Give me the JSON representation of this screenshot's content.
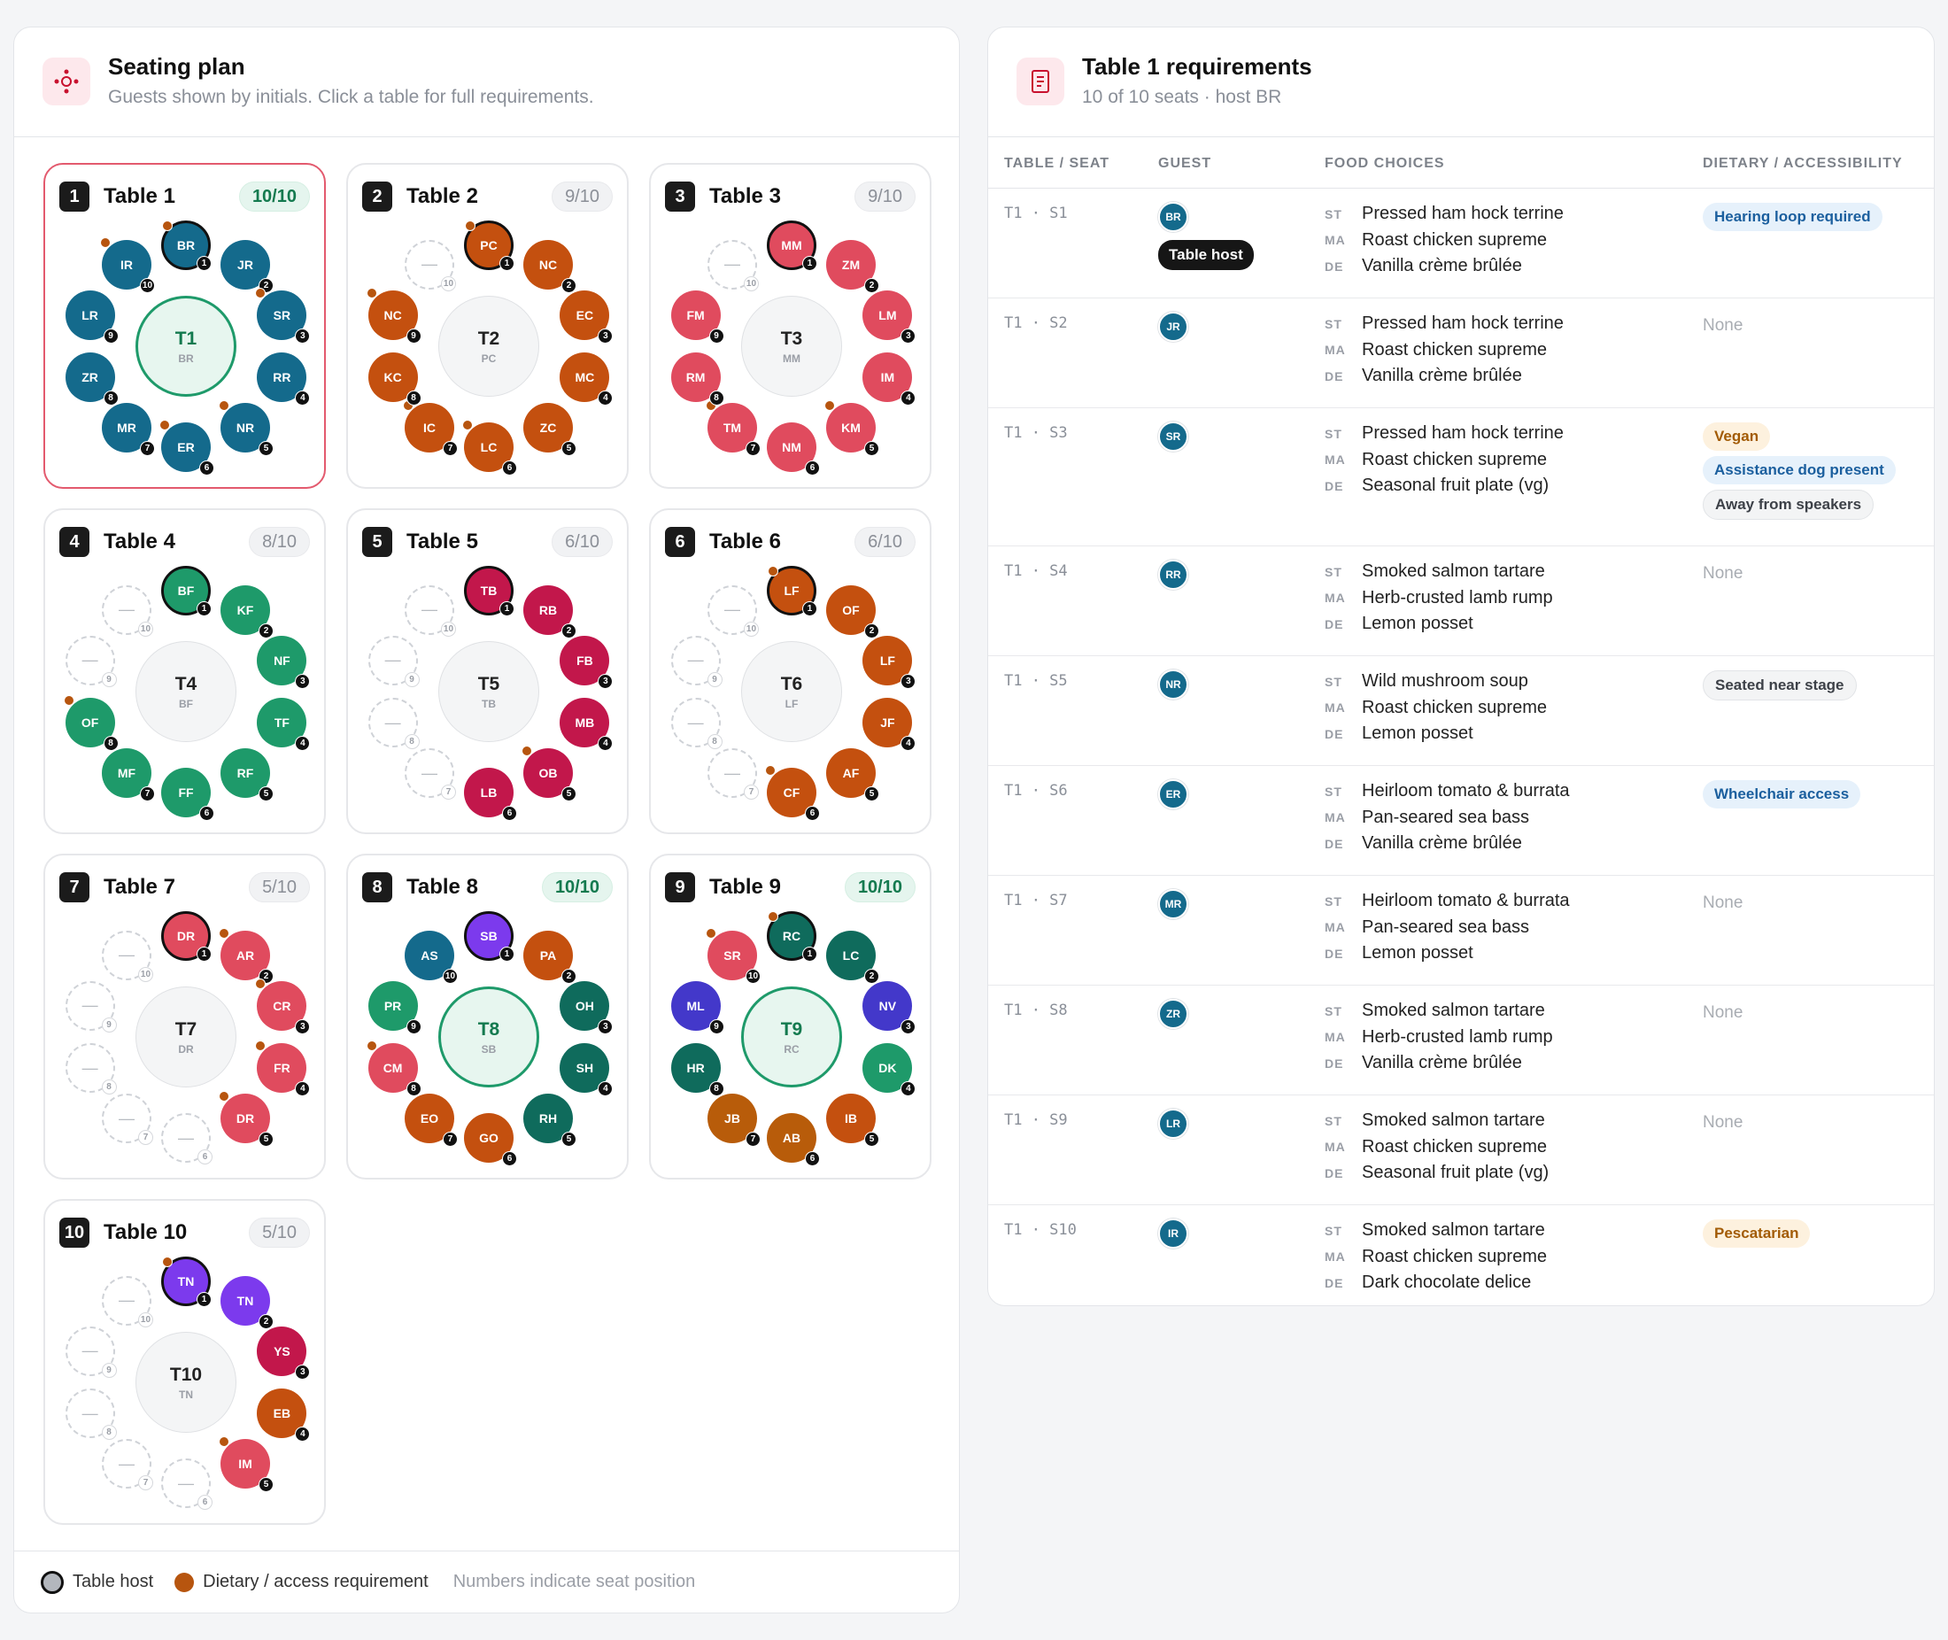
{
  "seating": {
    "title": "Seating plan",
    "subtitle": "Guests shown by initials. Click a table for full requirements.",
    "tables": [
      {
        "num": "1",
        "name": "Table 1",
        "count": "10/10",
        "full": true,
        "selected": true,
        "code": "T1",
        "host": "BR",
        "seats": [
          {
            "n": "1",
            "ini": "BR",
            "color": "#146a8c",
            "host": true,
            "req": true
          },
          {
            "n": "2",
            "ini": "JR",
            "color": "#146a8c",
            "req": false
          },
          {
            "n": "3",
            "ini": "SR",
            "color": "#146a8c",
            "req": true
          },
          {
            "n": "4",
            "ini": "RR",
            "color": "#146a8c",
            "req": false
          },
          {
            "n": "5",
            "ini": "NR",
            "color": "#146a8c",
            "req": true
          },
          {
            "n": "6",
            "ini": "ER",
            "color": "#146a8c",
            "req": true
          },
          {
            "n": "7",
            "ini": "MR",
            "color": "#146a8c",
            "req": false
          },
          {
            "n": "8",
            "ini": "ZR",
            "color": "#146a8c",
            "req": false
          },
          {
            "n": "9",
            "ini": "LR",
            "color": "#146a8c",
            "req": false
          },
          {
            "n": "10",
            "ini": "IR",
            "color": "#146a8c",
            "req": true
          }
        ]
      },
      {
        "num": "2",
        "name": "Table 2",
        "count": "9/10",
        "full": false,
        "code": "T2",
        "host": "PC",
        "seats": [
          {
            "n": "1",
            "ini": "PC",
            "color": "#c4500f",
            "host": true,
            "req": true
          },
          {
            "n": "2",
            "ini": "NC",
            "color": "#c4500f",
            "req": false
          },
          {
            "n": "3",
            "ini": "EC",
            "color": "#c4500f",
            "req": false
          },
          {
            "n": "4",
            "ini": "MC",
            "color": "#c4500f",
            "req": false
          },
          {
            "n": "5",
            "ini": "ZC",
            "color": "#c4500f",
            "req": false
          },
          {
            "n": "6",
            "ini": "LC",
            "color": "#c4500f",
            "req": true
          },
          {
            "n": "7",
            "ini": "IC",
            "color": "#c4500f",
            "req": true
          },
          {
            "n": "8",
            "ini": "KC",
            "color": "#c4500f",
            "req": false
          },
          {
            "n": "9",
            "ini": "NC",
            "color": "#c4500f",
            "req": true
          },
          {
            "n": "10",
            "ini": "",
            "empty": true
          }
        ]
      },
      {
        "num": "3",
        "name": "Table 3",
        "count": "9/10",
        "full": false,
        "code": "T3",
        "host": "MM",
        "seats": [
          {
            "n": "1",
            "ini": "MM",
            "color": "#e04b5e",
            "host": true,
            "req": false
          },
          {
            "n": "2",
            "ini": "ZM",
            "color": "#e04b5e",
            "req": false
          },
          {
            "n": "3",
            "ini": "LM",
            "color": "#e04b5e",
            "req": false
          },
          {
            "n": "4",
            "ini": "IM",
            "color": "#e04b5e",
            "req": false
          },
          {
            "n": "5",
            "ini": "KM",
            "color": "#e04b5e",
            "req": true
          },
          {
            "n": "6",
            "ini": "NM",
            "color": "#e04b5e",
            "req": false
          },
          {
            "n": "7",
            "ini": "TM",
            "color": "#e04b5e",
            "req": true
          },
          {
            "n": "8",
            "ini": "RM",
            "color": "#e04b5e",
            "req": false
          },
          {
            "n": "9",
            "ini": "FM",
            "color": "#e04b5e",
            "req": false
          },
          {
            "n": "10",
            "ini": "",
            "empty": true
          }
        ]
      },
      {
        "num": "4",
        "name": "Table 4",
        "count": "8/10",
        "full": false,
        "code": "T4",
        "host": "BF",
        "seats": [
          {
            "n": "1",
            "ini": "BF",
            "color": "#1e9a6a",
            "host": true,
            "req": false
          },
          {
            "n": "2",
            "ini": "KF",
            "color": "#1e9a6a",
            "req": false
          },
          {
            "n": "3",
            "ini": "NF",
            "color": "#1e9a6a",
            "req": false
          },
          {
            "n": "4",
            "ini": "TF",
            "color": "#1e9a6a",
            "req": false
          },
          {
            "n": "5",
            "ini": "RF",
            "color": "#1e9a6a",
            "req": false
          },
          {
            "n": "6",
            "ini": "FF",
            "color": "#1e9a6a",
            "req": false
          },
          {
            "n": "7",
            "ini": "MF",
            "color": "#1e9a6a",
            "req": false
          },
          {
            "n": "8",
            "ini": "OF",
            "color": "#1e9a6a",
            "req": true
          },
          {
            "n": "9",
            "ini": "",
            "empty": true
          },
          {
            "n": "10",
            "ini": "",
            "empty": true
          }
        ]
      },
      {
        "num": "5",
        "name": "Table 5",
        "count": "6/10",
        "full": false,
        "code": "T5",
        "host": "TB",
        "seats": [
          {
            "n": "1",
            "ini": "TB",
            "color": "#c2174b",
            "host": true,
            "req": false
          },
          {
            "n": "2",
            "ini": "RB",
            "color": "#c2174b",
            "req": false
          },
          {
            "n": "3",
            "ini": "FB",
            "color": "#c2174b",
            "req": false
          },
          {
            "n": "4",
            "ini": "MB",
            "color": "#c2174b",
            "req": false
          },
          {
            "n": "5",
            "ini": "OB",
            "color": "#c2174b",
            "req": true
          },
          {
            "n": "6",
            "ini": "LB",
            "color": "#c2174b",
            "req": false
          },
          {
            "n": "7",
            "ini": "",
            "empty": true
          },
          {
            "n": "8",
            "ini": "",
            "empty": true
          },
          {
            "n": "9",
            "ini": "",
            "empty": true
          },
          {
            "n": "10",
            "ini": "",
            "empty": true
          }
        ]
      },
      {
        "num": "6",
        "name": "Table 6",
        "count": "6/10",
        "full": false,
        "code": "T6",
        "host": "LF",
        "seats": [
          {
            "n": "1",
            "ini": "LF",
            "color": "#c4500f",
            "host": true,
            "req": true
          },
          {
            "n": "2",
            "ini": "OF",
            "color": "#c4500f",
            "req": false
          },
          {
            "n": "3",
            "ini": "LF",
            "color": "#c4500f",
            "req": false
          },
          {
            "n": "4",
            "ini": "JF",
            "color": "#c4500f",
            "req": false
          },
          {
            "n": "5",
            "ini": "AF",
            "color": "#c4500f",
            "req": false
          },
          {
            "n": "6",
            "ini": "CF",
            "color": "#c4500f",
            "req": true
          },
          {
            "n": "7",
            "ini": "",
            "empty": true
          },
          {
            "n": "8",
            "ini": "",
            "empty": true
          },
          {
            "n": "9",
            "ini": "",
            "empty": true
          },
          {
            "n": "10",
            "ini": "",
            "empty": true
          }
        ]
      },
      {
        "num": "7",
        "name": "Table 7",
        "count": "5/10",
        "full": false,
        "code": "T7",
        "host": "DR",
        "seats": [
          {
            "n": "1",
            "ini": "DR",
            "color": "#e04b5e",
            "host": true,
            "req": false
          },
          {
            "n": "2",
            "ini": "AR",
            "color": "#e04b5e",
            "req": true
          },
          {
            "n": "3",
            "ini": "CR",
            "color": "#e04b5e",
            "req": true
          },
          {
            "n": "4",
            "ini": "FR",
            "color": "#e04b5e",
            "req": true
          },
          {
            "n": "5",
            "ini": "DR",
            "color": "#e04b5e",
            "req": true
          },
          {
            "n": "6",
            "ini": "",
            "empty": true
          },
          {
            "n": "7",
            "ini": "",
            "empty": true
          },
          {
            "n": "8",
            "ini": "",
            "empty": true
          },
          {
            "n": "9",
            "ini": "",
            "empty": true
          },
          {
            "n": "10",
            "ini": "",
            "empty": true
          }
        ]
      },
      {
        "num": "8",
        "name": "Table 8",
        "count": "10/10",
        "full": true,
        "code": "T8",
        "host": "SB",
        "seats": [
          {
            "n": "1",
            "ini": "SB",
            "color": "#7c3aed",
            "host": true,
            "req": false
          },
          {
            "n": "2",
            "ini": "PA",
            "color": "#c4500f",
            "req": false
          },
          {
            "n": "3",
            "ini": "OH",
            "color": "#0f6b5c",
            "req": false
          },
          {
            "n": "4",
            "ini": "SH",
            "color": "#0f6b5c",
            "req": false
          },
          {
            "n": "5",
            "ini": "RH",
            "color": "#0f6b5c",
            "req": false
          },
          {
            "n": "6",
            "ini": "GO",
            "color": "#c4500f",
            "req": false
          },
          {
            "n": "7",
            "ini": "EO",
            "color": "#c4500f",
            "req": false
          },
          {
            "n": "8",
            "ini": "CM",
            "color": "#e04b5e",
            "req": true
          },
          {
            "n": "9",
            "ini": "PR",
            "color": "#1e9a6a",
            "req": false
          },
          {
            "n": "10",
            "ini": "AS",
            "color": "#146a8c",
            "req": false
          }
        ]
      },
      {
        "num": "9",
        "name": "Table 9",
        "count": "10/10",
        "full": true,
        "code": "T9",
        "host": "RC",
        "seats": [
          {
            "n": "1",
            "ini": "RC",
            "color": "#0f6b5c",
            "host": true,
            "req": true
          },
          {
            "n": "2",
            "ini": "LC",
            "color": "#0f6b5c",
            "req": false
          },
          {
            "n": "3",
            "ini": "NV",
            "color": "#4338ca",
            "req": false
          },
          {
            "n": "4",
            "ini": "DK",
            "color": "#1e9a6a",
            "req": false
          },
          {
            "n": "5",
            "ini": "IB",
            "color": "#c4500f",
            "req": false
          },
          {
            "n": "6",
            "ini": "AB",
            "color": "#b85c0a",
            "req": false
          },
          {
            "n": "7",
            "ini": "JB",
            "color": "#b85c0a",
            "req": false
          },
          {
            "n": "8",
            "ini": "HR",
            "color": "#0f6b5c",
            "req": false
          },
          {
            "n": "9",
            "ini": "ML",
            "color": "#4338ca",
            "req": false
          },
          {
            "n": "10",
            "ini": "SR",
            "color": "#e04b5e",
            "req": true
          }
        ]
      },
      {
        "num": "10",
        "name": "Table 10",
        "count": "5/10",
        "full": false,
        "code": "T10",
        "host": "TN",
        "seats": [
          {
            "n": "1",
            "ini": "TN",
            "color": "#7c3aed",
            "host": true,
            "req": true
          },
          {
            "n": "2",
            "ini": "TN",
            "color": "#7c3aed",
            "req": false
          },
          {
            "n": "3",
            "ini": "YS",
            "color": "#c2174b",
            "req": false
          },
          {
            "n": "4",
            "ini": "EB",
            "color": "#c4500f",
            "req": false
          },
          {
            "n": "5",
            "ini": "IM",
            "color": "#e04b5e",
            "req": true
          },
          {
            "n": "6",
            "ini": "",
            "empty": true
          },
          {
            "n": "7",
            "ini": "",
            "empty": true
          },
          {
            "n": "8",
            "ini": "",
            "empty": true
          },
          {
            "n": "9",
            "ini": "",
            "empty": true
          },
          {
            "n": "10",
            "ini": "",
            "empty": true
          }
        ]
      }
    ],
    "empty_glyph": "—",
    "legend": {
      "host": "Table host",
      "req": "Dietary / access requirement",
      "note": "Numbers indicate seat position"
    }
  },
  "requirements": {
    "title": "Table 1 requirements",
    "subtitle": "10 of 10 seats · host BR",
    "columns": {
      "seat": "TABLE / SEAT",
      "guest": "GUEST",
      "food": "FOOD CHOICES",
      "dietary": "DIETARY / ACCESSIBILITY"
    },
    "course_codes": [
      "ST",
      "MA",
      "DE"
    ],
    "host_label": "Table host",
    "rows": [
      {
        "seat": "T1 · S1",
        "ini": "BR",
        "host": true,
        "food": [
          "Pressed ham hock terrine",
          "Roast chicken supreme",
          "Vanilla crème brûlée"
        ],
        "tags": [
          {
            "text": "Hearing loop required",
            "style": "blue"
          }
        ]
      },
      {
        "seat": "T1 · S2",
        "ini": "JR",
        "food": [
          "Pressed ham hock terrine",
          "Roast chicken supreme",
          "Vanilla crème brûlée"
        ],
        "tags": [],
        "none": "None"
      },
      {
        "seat": "T1 · S3",
        "ini": "SR",
        "food": [
          "Pressed ham hock terrine",
          "Roast chicken supreme",
          "Seasonal fruit plate (vg)"
        ],
        "tags": [
          {
            "text": "Vegan",
            "style": "amber"
          },
          {
            "text": "Assistance dog present",
            "style": "blue"
          },
          {
            "text": "Away from speakers",
            "style": "gray"
          }
        ]
      },
      {
        "seat": "T1 · S4",
        "ini": "RR",
        "food": [
          "Smoked salmon tartare",
          "Herb-crusted lamb rump",
          "Lemon posset"
        ],
        "tags": [],
        "none": "None"
      },
      {
        "seat": "T1 · S5",
        "ini": "NR",
        "food": [
          "Wild mushroom soup",
          "Roast chicken supreme",
          "Lemon posset"
        ],
        "tags": [
          {
            "text": "Seated near stage",
            "style": "gray"
          }
        ]
      },
      {
        "seat": "T1 · S6",
        "ini": "ER",
        "food": [
          "Heirloom tomato & burrata",
          "Pan-seared sea bass",
          "Vanilla crème brûlée"
        ],
        "tags": [
          {
            "text": "Wheelchair access",
            "style": "blue"
          }
        ]
      },
      {
        "seat": "T1 · S7",
        "ini": "MR",
        "food": [
          "Heirloom tomato & burrata",
          "Pan-seared sea bass",
          "Lemon posset"
        ],
        "tags": [],
        "none": "None"
      },
      {
        "seat": "T1 · S8",
        "ini": "ZR",
        "food": [
          "Smoked salmon tartare",
          "Herb-crusted lamb rump",
          "Vanilla crème brûlée"
        ],
        "tags": [],
        "none": "None"
      },
      {
        "seat": "T1 · S9",
        "ini": "LR",
        "food": [
          "Smoked salmon tartare",
          "Roast chicken supreme",
          "Seasonal fruit plate (vg)"
        ],
        "tags": [],
        "none": "None"
      },
      {
        "seat": "T1 · S10",
        "ini": "IR",
        "food": [
          "Smoked salmon tartare",
          "Roast chicken supreme",
          "Dark chocolate delice"
        ],
        "tags": [
          {
            "text": "Pescatarian",
            "style": "amber"
          }
        ]
      }
    ]
  }
}
